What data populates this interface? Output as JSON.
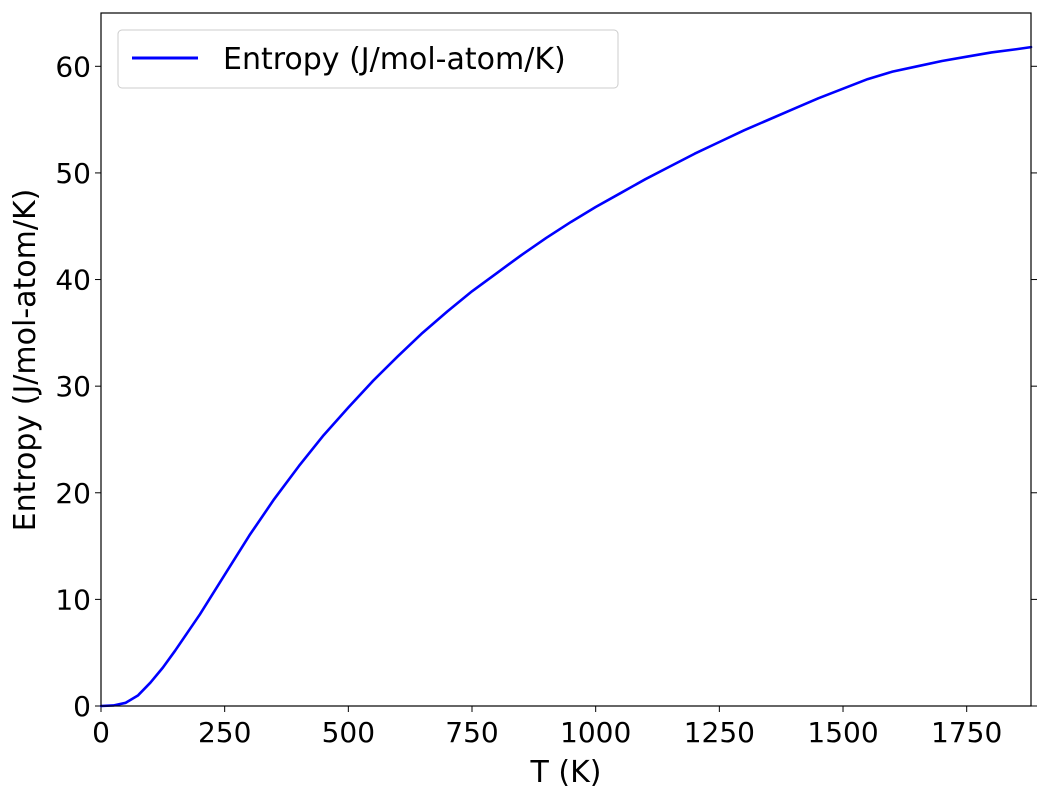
{
  "chart_data": {
    "type": "line",
    "title": "",
    "xlabel": "T (K)",
    "ylabel": "Entropy (J/mol-atom/K)",
    "xlim": [
      0,
      1880
    ],
    "ylim": [
      0,
      65
    ],
    "xticks": [
      0,
      250,
      500,
      750,
      1000,
      1250,
      1500,
      1750
    ],
    "yticks": [
      0,
      10,
      20,
      30,
      40,
      50,
      60
    ],
    "grid": false,
    "legend_position": "top-left",
    "series": [
      {
        "name": "Entropy (J/mol-atom/K)",
        "color": "#0000ff",
        "x": [
          0,
          25,
          50,
          75,
          100,
          125,
          150,
          175,
          200,
          250,
          300,
          350,
          400,
          450,
          500,
          550,
          600,
          650,
          700,
          750,
          800,
          850,
          900,
          950,
          1000,
          1050,
          1100,
          1150,
          1200,
          1250,
          1300,
          1350,
          1400,
          1450,
          1500,
          1550,
          1600,
          1650,
          1700,
          1750,
          1800,
          1850,
          1880
        ],
        "y": [
          0,
          0.05,
          0.3,
          1.0,
          2.2,
          3.6,
          5.2,
          6.9,
          8.6,
          12.3,
          16.0,
          19.4,
          22.5,
          25.4,
          28.0,
          30.5,
          32.8,
          35.0,
          37.0,
          38.9,
          40.6,
          42.3,
          43.9,
          45.4,
          46.8,
          48.1,
          49.4,
          50.6,
          51.8,
          52.9,
          54.0,
          55.0,
          56.0,
          57.0,
          57.9,
          58.8,
          59.5,
          60.0,
          60.5,
          60.9,
          61.3,
          61.6,
          61.8
        ]
      }
    ]
  }
}
